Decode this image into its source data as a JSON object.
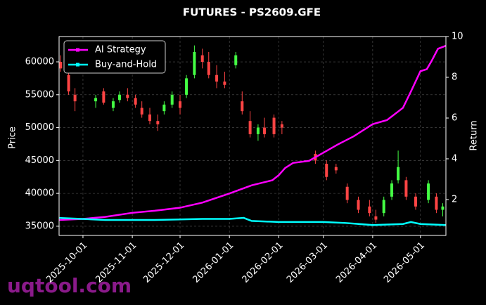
{
  "chart_data": {
    "type": "candlestick",
    "title": "FUTURES - PS2609.GFE",
    "ylabel": "Price",
    "y2label": "Return",
    "watermark": "uqtool.com",
    "up_color": "#44ff44",
    "down_color": "#ff4444",
    "x": [
      "2025-09-17",
      "2025-09-22",
      "2025-09-26",
      "2025-10-09",
      "2025-10-14",
      "2025-10-20",
      "2025-10-24",
      "2025-10-29",
      "2025-11-03",
      "2025-11-07",
      "2025-11-12",
      "2025-11-17",
      "2025-11-21",
      "2025-11-26",
      "2025-12-01",
      "2025-12-05",
      "2025-12-10",
      "2025-12-15",
      "2025-12-19",
      "2025-12-24",
      "2025-12-29",
      "2026-01-05",
      "2026-01-09",
      "2026-01-14",
      "2026-01-19",
      "2026-01-23",
      "2026-01-29",
      "2026-02-03",
      "2026-02-24",
      "2026-03-03",
      "2026-03-09",
      "2026-03-16",
      "2026-03-23",
      "2026-03-30",
      "2026-04-03",
      "2026-04-08",
      "2026-04-13",
      "2026-04-17",
      "2026-04-22",
      "2026-04-28",
      "2026-05-06",
      "2026-05-11",
      "2026-05-15"
    ],
    "open": [
      60000,
      58000,
      55000,
      54000,
      55500,
      53000,
      54200,
      55000,
      54500,
      53000,
      52000,
      51000,
      52500,
      53500,
      54000,
      55000,
      58000,
      61000,
      60000,
      58000,
      57000,
      59500,
      54000,
      51000,
      49000,
      50000,
      51500,
      50500,
      46000,
      44500,
      44000,
      41000,
      39000,
      38000,
      36500,
      37000,
      39500,
      42000,
      42000,
      39500,
      39000,
      39500,
      37500
    ],
    "high": [
      61000,
      58500,
      56000,
      55000,
      56000,
      54500,
      55500,
      56000,
      55000,
      54000,
      53000,
      52000,
      54000,
      55500,
      55000,
      58000,
      62500,
      62000,
      61500,
      59500,
      58500,
      61500,
      55500,
      52500,
      50500,
      51500,
      52000,
      51000,
      46500,
      45000,
      44500,
      41500,
      39500,
      39000,
      37500,
      39500,
      42000,
      46500,
      42500,
      40000,
      42000,
      40000,
      38500
    ],
    "low": [
      58500,
      55000,
      52500,
      53000,
      53500,
      52500,
      53800,
      54000,
      53000,
      51500,
      50500,
      49500,
      52000,
      53000,
      52000,
      54500,
      57500,
      59000,
      57500,
      56000,
      56000,
      59000,
      52000,
      48500,
      48000,
      48500,
      48500,
      49000,
      44500,
      42000,
      43000,
      38500,
      37000,
      36500,
      35500,
      36500,
      39000,
      41500,
      39000,
      37500,
      38500,
      37000,
      36500
    ],
    "close": [
      59000,
      55500,
      54000,
      54500,
      53800,
      54000,
      55000,
      54500,
      53500,
      52000,
      51000,
      50500,
      53500,
      55000,
      53000,
      57500,
      61500,
      60000,
      58000,
      57000,
      56500,
      61000,
      52500,
      49000,
      50000,
      49000,
      49000,
      50000,
      45000,
      42500,
      43500,
      39000,
      37500,
      37000,
      36000,
      39000,
      41500,
      44000,
      39500,
      38000,
      41500,
      37500,
      38000
    ],
    "series": [
      {
        "name": "AI Strategy",
        "color": "#ff00ff",
        "axis": "y2",
        "x": [
          "2025-09-16",
          "2025-10-01",
          "2025-10-15",
          "2025-11-01",
          "2025-11-15",
          "2025-12-01",
          "2025-12-15",
          "2026-01-01",
          "2026-01-15",
          "2026-01-28",
          "2026-02-01",
          "2026-02-05",
          "2026-02-10",
          "2026-02-20",
          "2026-03-01",
          "2026-03-10",
          "2026-03-20",
          "2026-04-01",
          "2026-04-10",
          "2026-04-20",
          "2026-04-25",
          "2026-05-01",
          "2026-05-05",
          "2026-05-08",
          "2026-05-12",
          "2026-05-17"
        ],
        "values": [
          1.0,
          1.05,
          1.15,
          1.35,
          1.45,
          1.6,
          1.85,
          2.3,
          2.7,
          2.95,
          3.2,
          3.55,
          3.8,
          3.9,
          4.3,
          4.7,
          5.1,
          5.7,
          5.9,
          6.5,
          7.3,
          8.3,
          8.4,
          8.8,
          9.4,
          9.55
        ]
      },
      {
        "name": "Buy-and-Hold",
        "color": "#00ffff",
        "axis": "y2",
        "x": [
          "2025-09-16",
          "2025-10-15",
          "2025-11-15",
          "2025-12-15",
          "2026-01-01",
          "2026-01-10",
          "2026-01-15",
          "2026-02-01",
          "2026-03-01",
          "2026-03-15",
          "2026-04-01",
          "2026-04-20",
          "2026-04-25",
          "2026-05-01",
          "2026-05-17"
        ],
        "values": [
          1.1,
          1.0,
          1.0,
          1.05,
          1.05,
          1.1,
          0.95,
          0.9,
          0.9,
          0.85,
          0.75,
          0.8,
          0.9,
          0.8,
          0.75
        ]
      }
    ],
    "xlim": [
      "2025-09-16",
      "2026-05-17"
    ],
    "xticks": [
      "2025-10-01",
      "2025-11-01",
      "2025-12-01",
      "2026-01-01",
      "2026-02-01",
      "2026-03-01",
      "2026-04-01",
      "2026-05-01"
    ],
    "ylim": [
      33600,
      63850
    ],
    "yticks": [
      35000,
      40000,
      45000,
      50000,
      55000,
      60000
    ],
    "y2lim": [
      0.24,
      10
    ],
    "y2ticks": [
      2,
      4,
      6,
      8,
      10
    ],
    "grid": true,
    "legend": "upper left"
  }
}
